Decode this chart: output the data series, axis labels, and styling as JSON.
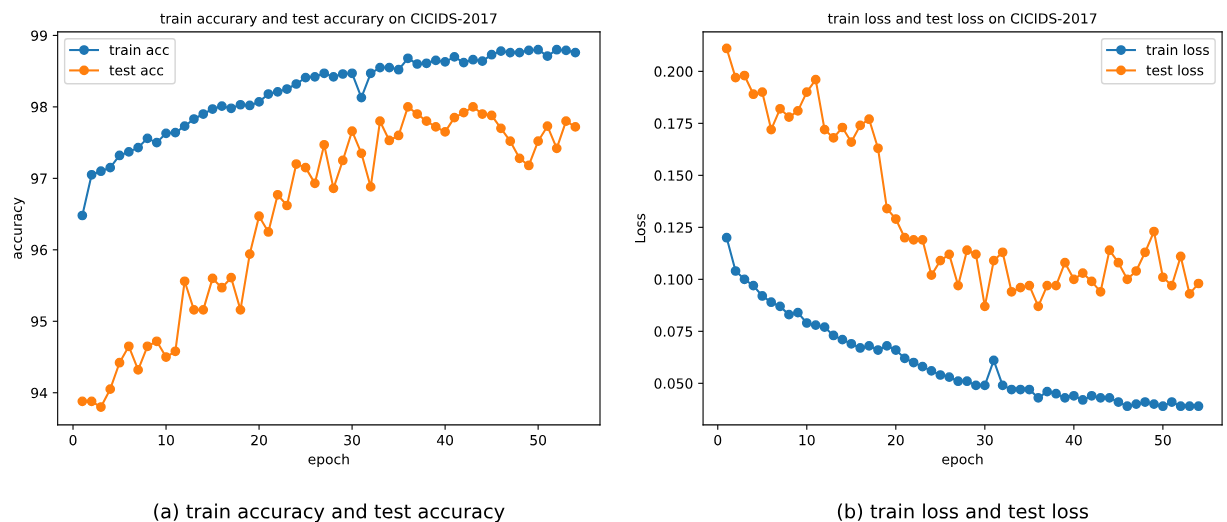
{
  "chart_data": [
    {
      "type": "line",
      "title": "train accurary and test accurary on CICIDS-2017",
      "xlabel": "epoch",
      "ylabel": "accuracy",
      "annotations": [
        "(a) train accuracy and test accuracy"
      ],
      "x": [
        1,
        2,
        3,
        4,
        5,
        6,
        7,
        8,
        9,
        10,
        11,
        12,
        13,
        14,
        15,
        16,
        17,
        18,
        19,
        20,
        21,
        22,
        23,
        24,
        25,
        26,
        27,
        28,
        29,
        30,
        31,
        32,
        33,
        34,
        35,
        36,
        37,
        38,
        39,
        40,
        41,
        42,
        43,
        44,
        45,
        46,
        47,
        48,
        49,
        50,
        51,
        52,
        53,
        54
      ],
      "series": [
        {
          "name": "train acc",
          "color": "#1f77b4",
          "values": [
            96.48,
            97.05,
            97.1,
            97.15,
            97.32,
            97.37,
            97.43,
            97.56,
            97.5,
            97.63,
            97.64,
            97.73,
            97.83,
            97.9,
            97.97,
            98.01,
            97.98,
            98.03,
            98.02,
            98.07,
            98.18,
            98.21,
            98.25,
            98.32,
            98.41,
            98.42,
            98.47,
            98.42,
            98.46,
            98.47,
            98.13,
            98.47,
            98.55,
            98.55,
            98.52,
            98.68,
            98.6,
            98.61,
            98.65,
            98.63,
            98.7,
            98.62,
            98.66,
            98.64,
            98.73,
            98.78,
            98.76,
            98.76,
            98.79,
            98.8,
            98.71,
            98.8,
            98.79,
            98.76
          ]
        },
        {
          "name": "test acc",
          "color": "#ff7f0e",
          "values": [
            93.88,
            93.88,
            93.8,
            94.05,
            94.42,
            94.65,
            94.32,
            94.65,
            94.72,
            94.5,
            94.58,
            95.56,
            95.16,
            95.16,
            95.6,
            95.47,
            95.61,
            95.16,
            95.94,
            96.47,
            96.25,
            96.77,
            96.62,
            97.2,
            97.15,
            96.93,
            97.47,
            96.86,
            97.25,
            97.66,
            97.35,
            96.88,
            97.8,
            97.53,
            97.6,
            98.0,
            97.9,
            97.8,
            97.72,
            97.65,
            97.85,
            97.92,
            98.0,
            97.9,
            97.88,
            97.7,
            97.52,
            97.28,
            97.18,
            97.52,
            97.73,
            97.42,
            97.8,
            97.72
          ]
        }
      ],
      "xlim": [
        -1.65,
        56.65
      ],
      "xticks": [
        0,
        10,
        20,
        30,
        40,
        50
      ],
      "ylim": [
        93.55,
        99.05
      ],
      "yticks": [
        94,
        95,
        96,
        97,
        98,
        99
      ],
      "marker": "circle",
      "line_style": "solid",
      "grid": false,
      "legend": "top left"
    },
    {
      "type": "line",
      "title": "train loss and test loss on CICIDS-2017",
      "xlabel": "epoch",
      "ylabel": "Loss",
      "annotations": [
        "(b) train loss and test loss"
      ],
      "x": [
        1,
        2,
        3,
        4,
        5,
        6,
        7,
        8,
        9,
        10,
        11,
        12,
        13,
        14,
        15,
        16,
        17,
        18,
        19,
        20,
        21,
        22,
        23,
        24,
        25,
        26,
        27,
        28,
        29,
        30,
        31,
        32,
        33,
        34,
        35,
        36,
        37,
        38,
        39,
        40,
        41,
        42,
        43,
        44,
        45,
        46,
        47,
        48,
        49,
        50,
        51,
        52,
        53,
        54
      ],
      "series": [
        {
          "name": "train loss",
          "color": "#1f77b4",
          "values": [
            0.12,
            0.104,
            0.1,
            0.097,
            0.092,
            0.089,
            0.087,
            0.083,
            0.084,
            0.079,
            0.078,
            0.077,
            0.073,
            0.071,
            0.069,
            0.067,
            0.068,
            0.066,
            0.068,
            0.066,
            0.062,
            0.06,
            0.058,
            0.056,
            0.054,
            0.053,
            0.051,
            0.051,
            0.049,
            0.049,
            0.061,
            0.049,
            0.047,
            0.047,
            0.047,
            0.043,
            0.046,
            0.045,
            0.043,
            0.044,
            0.042,
            0.044,
            0.043,
            0.043,
            0.041,
            0.039,
            0.04,
            0.041,
            0.04,
            0.039,
            0.041,
            0.039,
            0.039,
            0.039
          ]
        },
        {
          "name": "test loss",
          "color": "#ff7f0e",
          "values": [
            0.211,
            0.197,
            0.198,
            0.189,
            0.19,
            0.172,
            0.182,
            0.178,
            0.181,
            0.19,
            0.196,
            0.172,
            0.168,
            0.173,
            0.166,
            0.174,
            0.177,
            0.163,
            0.134,
            0.129,
            0.12,
            0.119,
            0.119,
            0.102,
            0.109,
            0.112,
            0.097,
            0.114,
            0.112,
            0.087,
            0.109,
            0.113,
            0.094,
            0.096,
            0.097,
            0.087,
            0.097,
            0.097,
            0.108,
            0.1,
            0.103,
            0.099,
            0.094,
            0.114,
            0.108,
            0.1,
            0.104,
            0.113,
            0.123,
            0.101,
            0.097,
            0.111,
            0.093,
            0.098
          ]
        }
      ],
      "xlim": [
        -1.65,
        56.65
      ],
      "xticks": [
        0,
        10,
        20,
        30,
        40,
        50
      ],
      "ylim": [
        0.03,
        0.219
      ],
      "yticks": [
        {
          "value": 0.05,
          "label": "0.050"
        },
        {
          "value": 0.075,
          "label": "0.075"
        },
        {
          "value": 0.1,
          "label": "0.100"
        },
        {
          "value": 0.125,
          "label": "0.125"
        },
        {
          "value": 0.15,
          "label": "0.150"
        },
        {
          "value": 0.175,
          "label": "0.175"
        },
        {
          "value": 0.2,
          "label": "0.200"
        }
      ],
      "marker": "circle",
      "line_style": "solid",
      "grid": false,
      "legend": "top right"
    }
  ]
}
